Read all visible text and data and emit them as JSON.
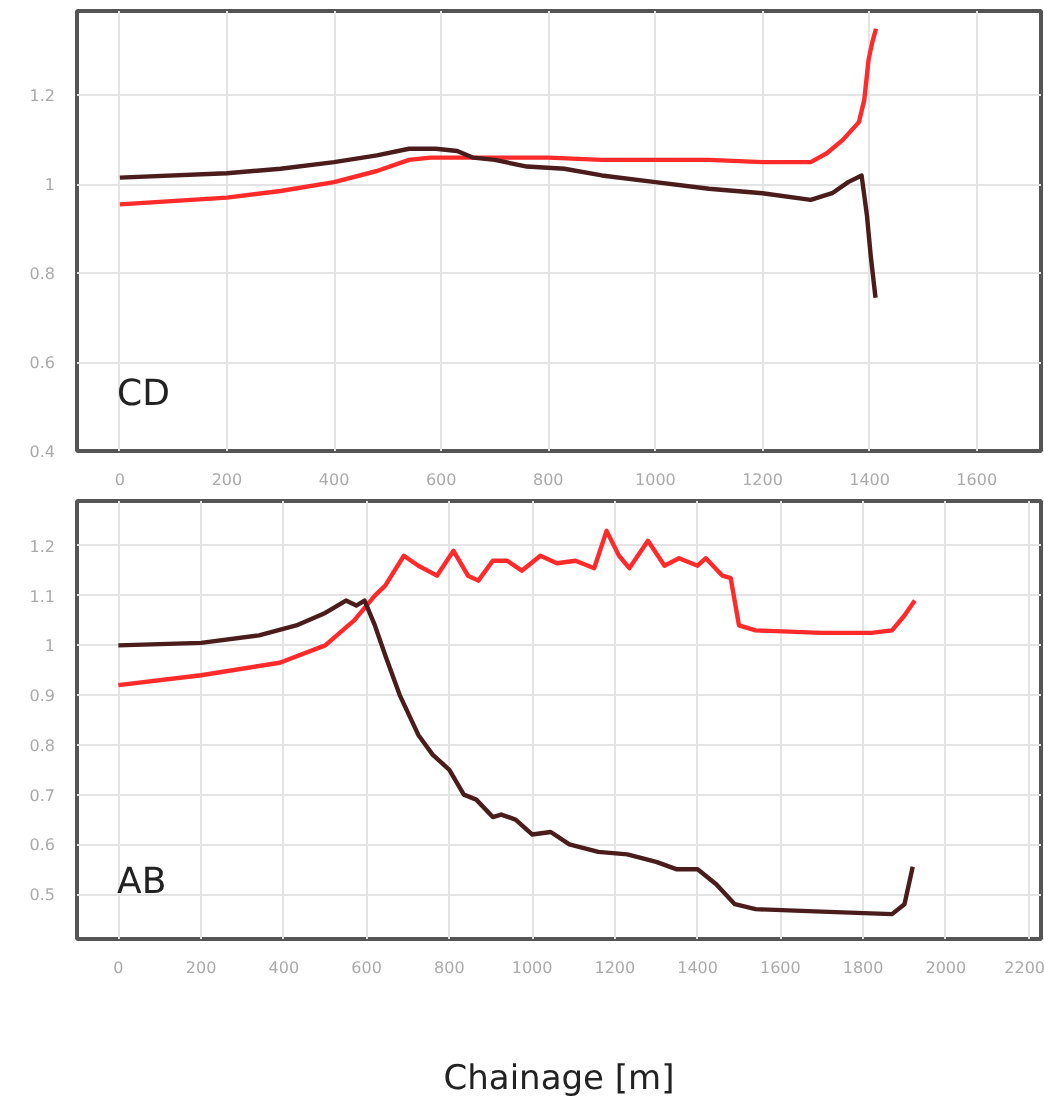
{
  "chart_data": [
    {
      "type": "line",
      "xlim": [
        -80,
        1720
      ],
      "ylim": [
        0.4,
        1.39
      ],
      "xticks": [
        0,
        200,
        400,
        600,
        800,
        1000,
        1200,
        1400,
        1600
      ],
      "yticks": [
        0.4,
        0.6,
        0.8,
        {
          "value": 1,
          "label": "1"
        },
        1.2
      ],
      "grid": true,
      "marker": "none",
      "line_style": "solid",
      "annotations": [
        "CD"
      ],
      "series": [
        {
          "color": "#ff2a2a",
          "x": [
            0,
            200,
            300,
            400,
            480,
            540,
            580,
            650,
            700,
            800,
            900,
            1000,
            1100,
            1200,
            1290,
            1320,
            1350,
            1380,
            1390,
            1398,
            1405,
            1412
          ],
          "values": [
            0.955,
            0.97,
            0.985,
            1.005,
            1.03,
            1.055,
            1.06,
            1.06,
            1.06,
            1.06,
            1.055,
            1.055,
            1.055,
            1.05,
            1.05,
            1.07,
            1.1,
            1.14,
            1.19,
            1.28,
            1.32,
            1.35
          ]
        },
        {
          "color": "#4a1c1c",
          "x": [
            0,
            200,
            300,
            400,
            480,
            540,
            590,
            630,
            660,
            700,
            760,
            830,
            900,
            1000,
            1100,
            1200,
            1290,
            1330,
            1360,
            1385,
            1395,
            1402,
            1411
          ],
          "values": [
            1.015,
            1.025,
            1.035,
            1.05,
            1.065,
            1.08,
            1.08,
            1.075,
            1.06,
            1.055,
            1.04,
            1.035,
            1.02,
            1.005,
            0.99,
            0.98,
            0.965,
            0.98,
            1.005,
            1.02,
            0.93,
            0.84,
            0.745
          ]
        }
      ]
    },
    {
      "type": "line",
      "xlim": [
        -100,
        2230
      ],
      "ylim": [
        0.41,
        1.29
      ],
      "xticks": [
        0,
        200,
        400,
        600,
        800,
        1000,
        1200,
        1400,
        1600,
        1800,
        2000,
        2200
      ],
      "yticks": [
        0.5,
        0.6,
        0.7,
        0.8,
        0.9,
        {
          "value": 1,
          "label": "1"
        },
        1.1,
        1.2
      ],
      "grid": true,
      "marker": "none",
      "line_style": "solid",
      "xlabel": "Chainage [m]",
      "annotations": [
        "AB"
      ],
      "series": [
        {
          "color": "#ff2a2a",
          "x": [
            0,
            200,
            390,
            500,
            570,
            620,
            645,
            690,
            725,
            770,
            810,
            845,
            870,
            905,
            940,
            975,
            1020,
            1060,
            1105,
            1150,
            1180,
            1210,
            1235,
            1280,
            1320,
            1355,
            1400,
            1420,
            1460,
            1480,
            1500,
            1540,
            1700,
            1820,
            1870,
            1900,
            1925
          ],
          "values": [
            0.92,
            0.94,
            0.965,
            1.0,
            1.05,
            1.1,
            1.12,
            1.18,
            1.16,
            1.14,
            1.19,
            1.14,
            1.13,
            1.17,
            1.17,
            1.15,
            1.18,
            1.165,
            1.17,
            1.155,
            1.23,
            1.18,
            1.155,
            1.21,
            1.16,
            1.175,
            1.16,
            1.175,
            1.14,
            1.135,
            1.04,
            1.03,
            1.025,
            1.025,
            1.03,
            1.06,
            1.09
          ]
        },
        {
          "color": "#4a1c1c",
          "x": [
            0,
            200,
            340,
            430,
            500,
            550,
            575,
            595,
            620,
            645,
            680,
            725,
            760,
            800,
            835,
            865,
            905,
            925,
            960,
            1000,
            1045,
            1090,
            1160,
            1230,
            1300,
            1350,
            1400,
            1445,
            1490,
            1540,
            1700,
            1870,
            1900,
            1920
          ],
          "values": [
            1.0,
            1.005,
            1.02,
            1.04,
            1.065,
            1.09,
            1.08,
            1.09,
            1.04,
            0.98,
            0.9,
            0.82,
            0.78,
            0.75,
            0.7,
            0.69,
            0.655,
            0.66,
            0.65,
            0.62,
            0.625,
            0.6,
            0.585,
            0.58,
            0.565,
            0.55,
            0.55,
            0.52,
            0.48,
            0.47,
            0.465,
            0.46,
            0.48,
            0.555
          ]
        }
      ]
    }
  ]
}
